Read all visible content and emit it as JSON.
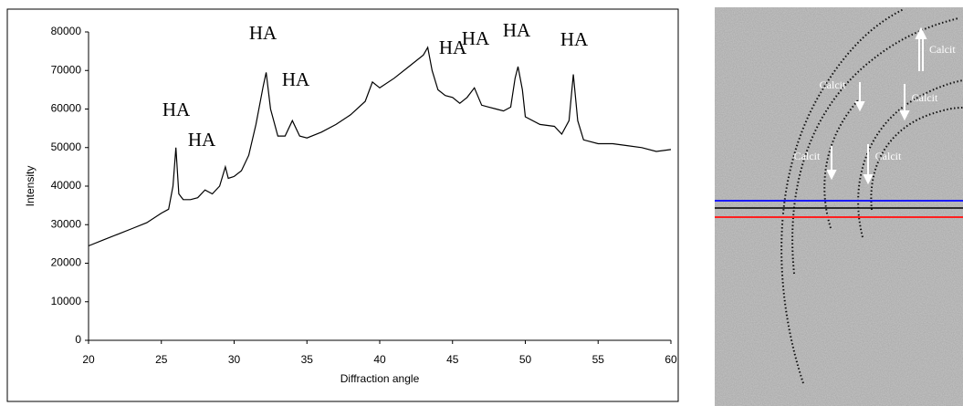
{
  "chart_data": {
    "type": "line",
    "xlabel": "Diffraction angle",
    "ylabel": "Intensity",
    "color": "#000000",
    "x": [
      20,
      21,
      22,
      23,
      24,
      25,
      25.5,
      25.8,
      26,
      26.2,
      26.5,
      27,
      27.5,
      28,
      28.5,
      29,
      29.4,
      29.6,
      30,
      30.5,
      31,
      31.5,
      32,
      32.2,
      32.5,
      33,
      33.5,
      34,
      34.5,
      35,
      36,
      37,
      38,
      39,
      39.5,
      40,
      41,
      42,
      43,
      43.3,
      43.6,
      44,
      44.5,
      45,
      45.5,
      46,
      46.5,
      47,
      47.5,
      48,
      48.5,
      49,
      49.3,
      49.5,
      49.8,
      50,
      51,
      52,
      52.5,
      53,
      53.3,
      53.6,
      54,
      55,
      56,
      57,
      58,
      59,
      60
    ],
    "values": [
      24500,
      26000,
      27500,
      29000,
      30500,
      33000,
      34000,
      40000,
      50000,
      38000,
      36500,
      36500,
      37000,
      39000,
      38000,
      40000,
      45000,
      42000,
      42500,
      44000,
      48000,
      56000,
      66000,
      69500,
      60000,
      53000,
      53000,
      57000,
      53000,
      52500,
      54000,
      56000,
      58500,
      62000,
      67000,
      65500,
      68000,
      71000,
      74000,
      76000,
      70000,
      65000,
      63500,
      63000,
      61500,
      63000,
      65500,
      61000,
      60500,
      60000,
      59500,
      60500,
      68000,
      71000,
      65000,
      58000,
      56000,
      55500,
      53500,
      57000,
      69000,
      57000,
      52000,
      51000,
      51000,
      50500,
      50000,
      49000,
      49500
    ],
    "xlim": [
      20,
      60
    ],
    "xticks": [
      20,
      25,
      30,
      35,
      40,
      45,
      50,
      55,
      60
    ],
    "ylim": [
      0,
      80000
    ],
    "yticks": [
      0,
      10000,
      20000,
      30000,
      40000,
      50000,
      60000,
      70000,
      80000
    ],
    "annotations": [
      "HA",
      "HA",
      "HA",
      "HA",
      "HA",
      "HA",
      "HA",
      "HA"
    ]
  },
  "image": {
    "labels": [
      "Calcit",
      "Calcit",
      "Calcit",
      "Calcit",
      "Calcit"
    ]
  }
}
